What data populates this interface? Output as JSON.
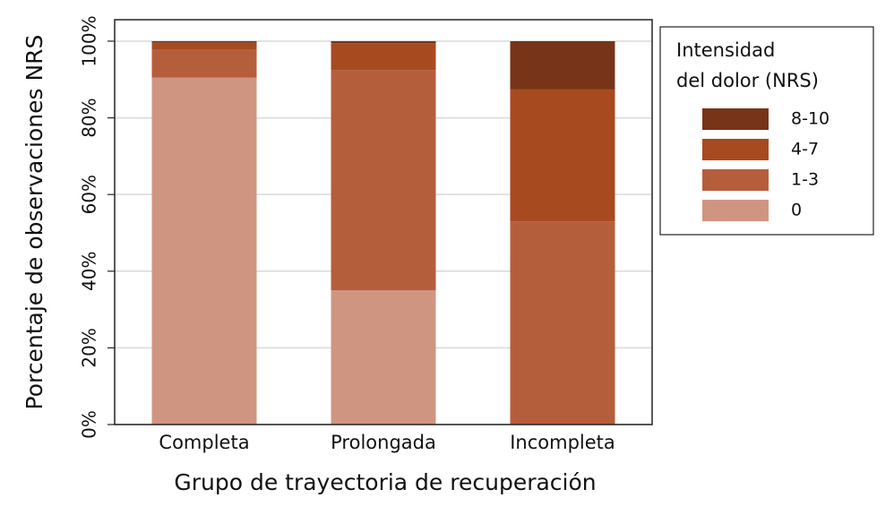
{
  "chart_data": {
    "type": "stacked_bar",
    "x_label": "Grupo de trayectoria de recuperación",
    "y_label": "Porcentaje de observaciones NRS",
    "categories": [
      "Completa",
      "Prolongada",
      "Incompleta"
    ],
    "series": [
      {
        "name": "0",
        "color": "#d09580",
        "values": [
          90.5,
          35.0,
          0
        ]
      },
      {
        "name": "1-3",
        "color": "#b55e3c",
        "values": [
          7.2,
          57.5,
          53.0
        ]
      },
      {
        "name": "4-7",
        "color": "#a84a20",
        "values": [
          1.9,
          7.0,
          34.4
        ]
      },
      {
        "name": "8-10",
        "color": "#773418",
        "values": [
          0.4,
          0.5,
          12.6
        ]
      }
    ],
    "legend_title": [
      "Intensidad",
      "del dolor (NRS)"
    ],
    "legend_position": "right",
    "ylim": [
      0,
      105.6
    ],
    "yticks": [
      {
        "value": 0,
        "label": "0%"
      },
      {
        "value": 20,
        "label": "20%"
      },
      {
        "value": 40,
        "label": "40%"
      },
      {
        "value": 60,
        "label": "60%"
      },
      {
        "value": 80,
        "label": "80%"
      },
      {
        "value": 100,
        "label": "100%"
      }
    ],
    "grid": true
  }
}
